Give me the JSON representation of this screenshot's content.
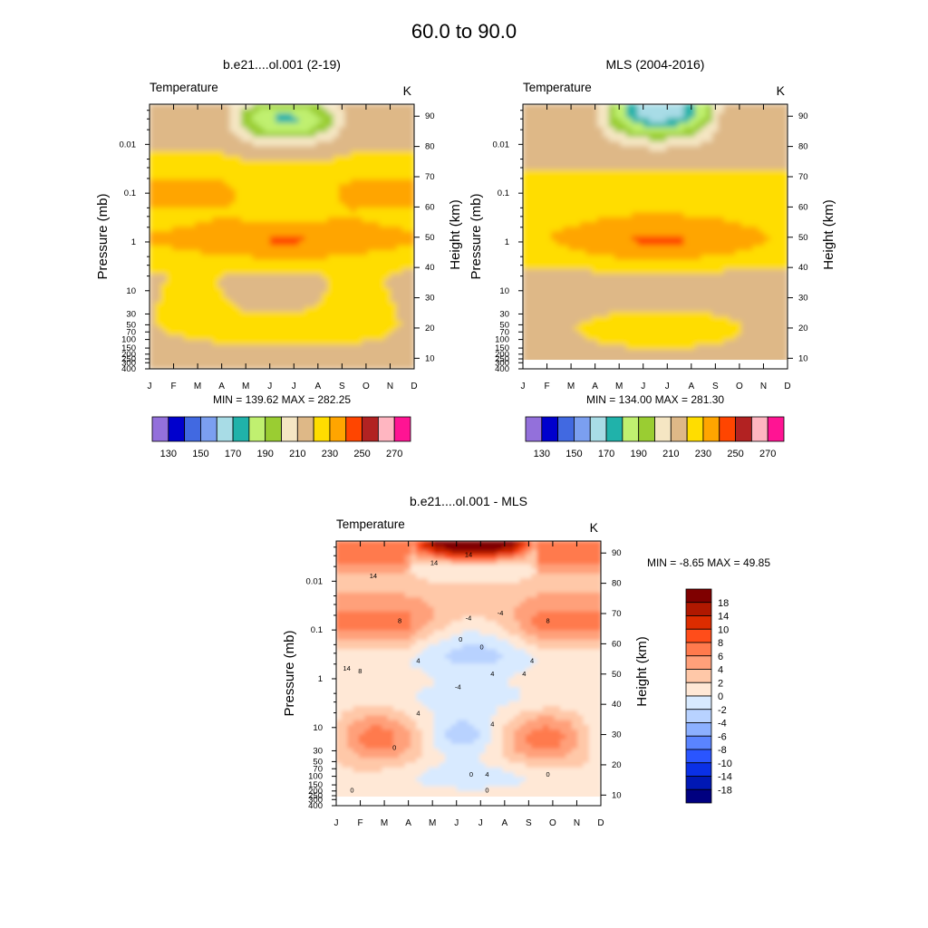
{
  "title": "60.0 to  90.0",
  "chart_data": [
    {
      "type": "heatmap",
      "title": "b.e21....ol.001 (2-19)",
      "subtitle": "Temperature",
      "units": "K",
      "xlabel": "",
      "ylabel": "Pressure (mb)",
      "ylabel_right": "Height (km)",
      "x_categories": [
        "J",
        "F",
        "M",
        "A",
        "M",
        "J",
        "J",
        "A",
        "S",
        "O",
        "N",
        "D"
      ],
      "pressure_ticks": [
        "400",
        "300",
        "250",
        "200",
        "150",
        "100",
        "70",
        "50",
        "30",
        "10",
        "1",
        "0.1",
        "0.01"
      ],
      "pressure_values": [
        400,
        300,
        250,
        200,
        150,
        100,
        70,
        50,
        30,
        10,
        1,
        0.1,
        0.01
      ],
      "height_ticks": [
        "10",
        "20",
        "30",
        "40",
        "50",
        "60",
        "70",
        "80",
        "90"
      ],
      "height_values": [
        10,
        20,
        30,
        40,
        50,
        60,
        70,
        80,
        90
      ],
      "ylim_mb": [
        400,
        0.0015
      ],
      "stats": "MIN = 139.62  MAX = 282.25",
      "levels": [
        130,
        140,
        150,
        160,
        170,
        180,
        190,
        200,
        210,
        220,
        230,
        240,
        250,
        260,
        270
      ],
      "level_labels": [
        "130",
        "150",
        "170",
        "190",
        "210",
        "230",
        "250",
        "270"
      ]
    },
    {
      "type": "heatmap",
      "title": "MLS (2004-2016)",
      "subtitle": "Temperature",
      "units": "K",
      "xlabel": "",
      "ylabel": "Pressure (mb)",
      "ylabel_right": "Height (km)",
      "x_categories": [
        "J",
        "F",
        "M",
        "A",
        "M",
        "J",
        "J",
        "A",
        "S",
        "O",
        "N",
        "D"
      ],
      "pressure_ticks": [
        "400",
        "300",
        "250",
        "200",
        "150",
        "100",
        "70",
        "50",
        "30",
        "10",
        "1",
        "0.1",
        "0.01"
      ],
      "pressure_values": [
        400,
        300,
        250,
        200,
        150,
        100,
        70,
        50,
        30,
        10,
        1,
        0.1,
        0.01
      ],
      "height_ticks": [
        "10",
        "20",
        "30",
        "40",
        "50",
        "60",
        "70",
        "80",
        "90"
      ],
      "height_values": [
        10,
        20,
        30,
        40,
        50,
        60,
        70,
        80,
        90
      ],
      "ylim_mb": [
        400,
        0.0015
      ],
      "data_bottom_mb": 261,
      "stats": "MIN = 134.00  MAX = 281.30",
      "levels": [
        130,
        140,
        150,
        160,
        170,
        180,
        190,
        200,
        210,
        220,
        230,
        240,
        250,
        260,
        270
      ],
      "level_labels": [
        "130",
        "150",
        "170",
        "190",
        "210",
        "230",
        "250",
        "270"
      ]
    },
    {
      "type": "heatmap",
      "title": "b.e21....ol.001 - MLS",
      "subtitle": "Temperature",
      "units": "K",
      "xlabel": "",
      "ylabel": "Pressure (mb)",
      "ylabel_right": "Height (km)",
      "x_categories": [
        "J",
        "F",
        "M",
        "A",
        "M",
        "J",
        "J",
        "A",
        "S",
        "O",
        "N",
        "D"
      ],
      "pressure_ticks": [
        "400",
        "300",
        "250",
        "200",
        "150",
        "100",
        "70",
        "50",
        "30",
        "10",
        "1",
        "0.1",
        "0.01"
      ],
      "pressure_values": [
        400,
        300,
        250,
        200,
        150,
        100,
        70,
        50,
        30,
        10,
        1,
        0.1,
        0.01
      ],
      "height_ticks": [
        "10",
        "20",
        "30",
        "40",
        "50",
        "60",
        "70",
        "80",
        "90"
      ],
      "height_values": [
        10,
        20,
        30,
        40,
        50,
        60,
        70,
        80,
        90
      ],
      "ylim_mb": [
        400,
        0.0015
      ],
      "data_bottom_mb": 261,
      "stats": "MIN =  -8.65  MAX =  49.85",
      "levels": [
        -18,
        -14,
        -10,
        -8,
        -6,
        -4,
        -2,
        0,
        2,
        4,
        6,
        8,
        10,
        14,
        18
      ],
      "level_labels": [
        "18",
        "14",
        "10",
        "8",
        "6",
        "4",
        "2",
        "0",
        "-2",
        "-4",
        "-6",
        "-8",
        "-10",
        "-14",
        "-18"
      ],
      "contour_labels": [
        "14",
        "14",
        "14",
        "8",
        "8",
        "4",
        "4",
        "0",
        "0",
        "-4",
        "-4",
        "4",
        "4",
        "-4",
        "4",
        "4",
        "0",
        "0",
        "4",
        "0",
        "0",
        "0",
        "8",
        "14"
      ]
    }
  ],
  "colors": {
    "temperature_palette": [
      "#9370db",
      "#0000cd",
      "#4169e1",
      "#7b9ff0",
      "#a8dce6",
      "#20b2aa",
      "#c0f070",
      "#9acd32",
      "#f5e6c3",
      "#deb887",
      "#ffdd00",
      "#ffa500",
      "#ff4500",
      "#b22222",
      "#ffb6c1",
      "#ff1493"
    ],
    "difference_palette": [
      "#7f0000",
      "#b01800",
      "#dc2c00",
      "#ff4d1a",
      "#ff7a4d",
      "#ffa07a",
      "#ffc8a8",
      "#ffe8d6",
      "#d8eaff",
      "#b8d2ff",
      "#8cb0ff",
      "#5a84ff",
      "#2a55ff",
      "#0a30e6",
      "#0018b4",
      "#000080"
    ]
  }
}
